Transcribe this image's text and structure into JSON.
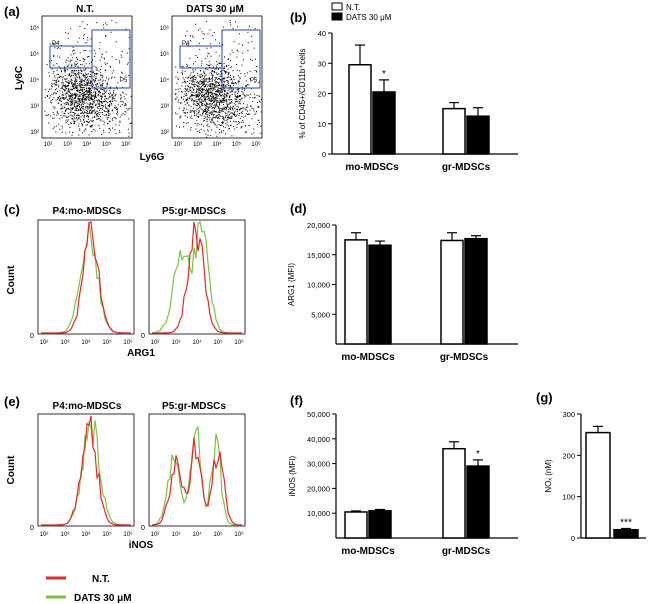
{
  "panel_labels": {
    "a": "(a)",
    "b": "(b)",
    "c": "(c)",
    "d": "(d)",
    "e": "(e)",
    "f": "(f)",
    "g": "(g)"
  },
  "panel_a": {
    "plot_titles": [
      "N.T.",
      "DATS 30 μM"
    ],
    "xlabel": "Ly6G",
    "ylabel": "Ly6C",
    "gate_labels": [
      "P4",
      "P5"
    ],
    "tick_labels": [
      "10²",
      "10³",
      "10⁴",
      "10⁵",
      "10⁶"
    ],
    "colors": {
      "dots": "#000000",
      "gate": "#2e3fb8",
      "gate_label": "#d0294a"
    }
  },
  "panel_c": {
    "plot_titles": [
      "P4:mo-MDSCs",
      "P5:gr-MDSCs"
    ],
    "xlabel": "ARG1",
    "ylabel": "Count",
    "origin_label": "0",
    "tick_labels": [
      "10²",
      "10³",
      "10⁴",
      "10⁵",
      "10⁶"
    ]
  },
  "panel_e": {
    "plot_titles": [
      "P4:mo-MDSCs",
      "P5:gr-MDSCs"
    ],
    "xlabel": "iNOS",
    "ylabel": "Count",
    "origin_label": "0",
    "tick_labels": [
      "10²",
      "10³",
      "10⁴",
      "10⁵",
      "10⁶"
    ]
  },
  "histogram_legend": {
    "items": [
      {
        "label": "N.T.",
        "color": "#e8262b"
      },
      {
        "label": "DATS 30 μM",
        "color": "#7cc242"
      }
    ]
  },
  "chart_data": [
    {
      "panel": "b",
      "type": "bar",
      "ylabel": "% of CD45+/CD11b⁺cells",
      "categories": [
        "mo-MDSCs",
        "gr-MDSCs"
      ],
      "ylim": [
        0,
        40
      ],
      "yticks": [
        "0",
        "10",
        "20",
        "30",
        "40"
      ],
      "legend": [
        "N.T.",
        "DATS 30 μM"
      ],
      "series": [
        {
          "name": "N.T.",
          "fill": "#ffffff",
          "values": [
            29.5,
            15
          ],
          "errors": [
            6.5,
            2
          ]
        },
        {
          "name": "DATS 30 μM",
          "fill": "#000000",
          "values": [
            20.5,
            12.5
          ],
          "errors": [
            4,
            2.8
          ]
        }
      ],
      "annotations": [
        {
          "series": 1,
          "category": 0,
          "text": "*"
        }
      ]
    },
    {
      "panel": "d",
      "type": "bar",
      "ylabel": "ARG1 (MFI)",
      "categories": [
        "mo-MDSCs",
        "gr-MDSCs"
      ],
      "ylim": [
        0,
        20000
      ],
      "yticks": [
        "5,000",
        "10,000",
        "15,000",
        "20,000"
      ],
      "series": [
        {
          "name": "N.T.",
          "fill": "#ffffff",
          "values": [
            17500,
            17400
          ],
          "errors": [
            1200,
            1300
          ]
        },
        {
          "name": "DATS 30 μM",
          "fill": "#000000",
          "values": [
            16600,
            17700
          ],
          "errors": [
            700,
            500
          ]
        }
      ]
    },
    {
      "panel": "f",
      "type": "bar",
      "ylabel": "iNOS (MFI)",
      "categories": [
        "mo-MDSCs",
        "gr-MDSCs"
      ],
      "ylim": [
        0,
        50000
      ],
      "yticks": [
        "10,000",
        "20,000",
        "30,000",
        "40,000",
        "50,000"
      ],
      "series": [
        {
          "name": "N.T.",
          "fill": "#ffffff",
          "values": [
            10500,
            36000
          ],
          "errors": [
            400,
            2800
          ]
        },
        {
          "name": "DATS 30 μM",
          "fill": "#000000",
          "values": [
            11000,
            29000
          ],
          "errors": [
            500,
            2500
          ]
        }
      ],
      "annotations": [
        {
          "series": 1,
          "category": 1,
          "text": "*"
        }
      ]
    },
    {
      "panel": "g",
      "type": "bar",
      "ylabel": "NOₓ (nM)",
      "categories": [
        "N.T.",
        "DATS 30 μM"
      ],
      "ylim": [
        0,
        300
      ],
      "yticks": [
        "0",
        "100",
        "200",
        "300"
      ],
      "values": [
        255,
        20
      ],
      "errors": [
        15,
        3
      ],
      "fills": [
        "#ffffff",
        "#000000"
      ],
      "annotations": [
        {
          "index": 1,
          "text": "***"
        }
      ]
    }
  ]
}
